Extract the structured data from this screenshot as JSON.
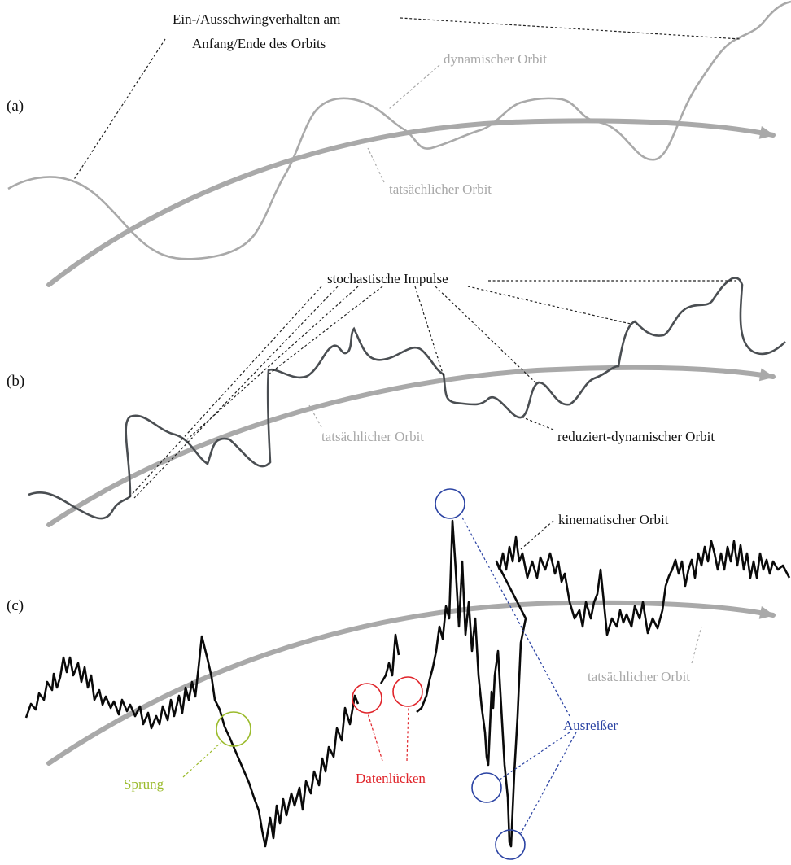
{
  "panels": {
    "a": {
      "label": "(a)",
      "annotation_line1": "Ein-/Ausschwingverhalten am",
      "annotation_line2": "Anfang/Ende des Orbits",
      "dynamic_orbit": "dynamischer Orbit",
      "true_orbit": "tatsächlicher Orbit"
    },
    "b": {
      "label": "(b)",
      "impulses": "stochastische Impulse",
      "true_orbit": "tatsächlicher Orbit",
      "reduced_orbit": "reduziert-dynamischer Orbit"
    },
    "c": {
      "label": "(c)",
      "kinematic_orbit": "kinematischer Orbit",
      "true_orbit": "tatsächlicher Orbit",
      "jump": "Sprung",
      "data_gaps": "Datenlücken",
      "outliers": "Ausreißer"
    }
  },
  "colors": {
    "reference_orbit": "#a9a9a9",
    "dynamic_orbit": "#a9a9a9",
    "reduced_dynamic_orbit": "#4a4e52",
    "kinematic_orbit": "#0a0a0a",
    "jump": "#9bbb2c",
    "data_gaps": "#e0242a",
    "outliers": "#2b43a3"
  }
}
